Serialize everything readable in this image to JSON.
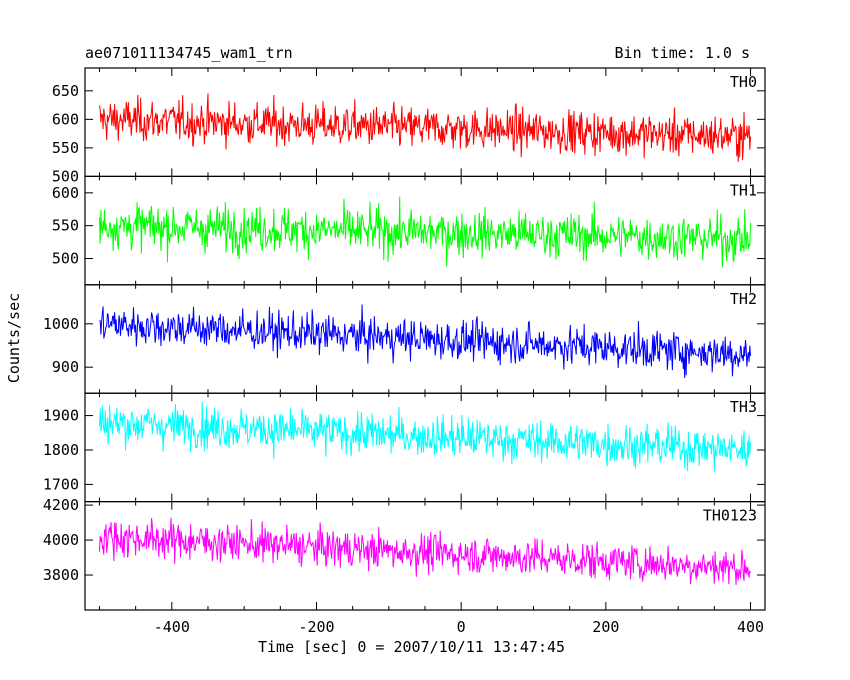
{
  "header": {
    "title": "ae071011134745_wam1_trn",
    "bin_time": "Bin time: 1.0 s"
  },
  "chart_data": {
    "type": "line",
    "xlabel": "Time [sec] 0 = 2007/10/11 13:47:45",
    "ylabel": "Counts/sec",
    "xlim": [
      -520,
      420
    ],
    "x_range": [
      -500,
      400
    ],
    "x_step": 1.0,
    "xticks": [
      -400,
      -200,
      0,
      200,
      400
    ],
    "grid": false,
    "panels": [
      {
        "name": "TH0",
        "color": "#ff0000",
        "ylim": [
          500,
          690
        ],
        "yticks": [
          500,
          550,
          600,
          650
        ],
        "trend": {
          "start": 600,
          "end": 570
        },
        "noise": 26
      },
      {
        "name": "TH1",
        "color": "#00ff00",
        "ylim": [
          460,
          625
        ],
        "yticks": [
          500,
          550,
          600
        ],
        "trend": {
          "start": 550,
          "end": 530
        },
        "noise": 24
      },
      {
        "name": "TH2",
        "color": "#0000ff",
        "ylim": [
          840,
          1090
        ],
        "yticks": [
          900,
          1000
        ],
        "trend": {
          "start": 1000,
          "end": 930
        },
        "noise": 32
      },
      {
        "name": "TH3",
        "color": "#00ffff",
        "ylim": [
          1650,
          1965
        ],
        "yticks": [
          1700,
          1800,
          1900
        ],
        "trend": {
          "start": 1880,
          "end": 1800
        },
        "noise": 42
      },
      {
        "name": "TH0123",
        "color": "#ff00ff",
        "ylim": [
          3600,
          4220
        ],
        "yticks": [
          3800,
          4000,
          4200
        ],
        "trend": {
          "start": 4020,
          "end": 3840
        },
        "noise": 75
      }
    ]
  }
}
